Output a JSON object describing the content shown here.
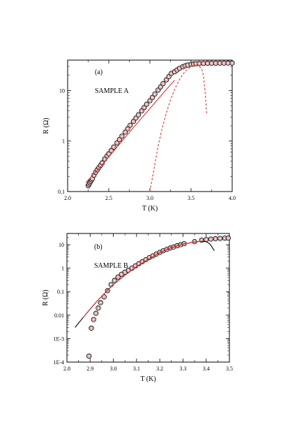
{
  "chart_data": [
    {
      "type": "scatter",
      "panel_label": "(a)",
      "sample_label": "SAMPLE A",
      "xlabel": "T (K)",
      "ylabel": "R (Ω)",
      "xlim": [
        2.0,
        4.0
      ],
      "ylim": [
        0.1,
        40
      ],
      "yscale": "log",
      "xticks": [
        2.0,
        2.5,
        3.0,
        3.5,
        4.0
      ],
      "xtick_labels": [
        "2.0",
        "2.5",
        "3.0",
        "3.5",
        "4.0"
      ],
      "yticks": [
        0.1,
        1,
        10
      ],
      "ytick_labels": [
        "0.1",
        "1",
        "10"
      ],
      "grid": false,
      "series": [
        {
          "style": "open-circle",
          "color": "#000000",
          "inner_color": "#e03030",
          "x": [
            2.25,
            2.26,
            2.27,
            2.28,
            2.29,
            2.3,
            2.32,
            2.34,
            2.36,
            2.38,
            2.4,
            2.42,
            2.45,
            2.48,
            2.5,
            2.53,
            2.56,
            2.6,
            2.63,
            2.66,
            2.7,
            2.73,
            2.76,
            2.8,
            2.83,
            2.86,
            2.9,
            2.93,
            2.96,
            3.0,
            3.03,
            3.06,
            3.1,
            3.13,
            3.16,
            3.2,
            3.23,
            3.26,
            3.3,
            3.33,
            3.36,
            3.4,
            3.43,
            3.46,
            3.5,
            3.53,
            3.56,
            3.6,
            3.65,
            3.7,
            3.75,
            3.8,
            3.85,
            3.9,
            3.95,
            4.0
          ],
          "y": [
            0.13,
            0.14,
            0.15,
            0.16,
            0.17,
            0.18,
            0.21,
            0.24,
            0.27,
            0.3,
            0.33,
            0.37,
            0.44,
            0.51,
            0.56,
            0.65,
            0.76,
            0.92,
            1.07,
            1.25,
            1.5,
            1.75,
            2.05,
            2.45,
            2.85,
            3.3,
            3.95,
            4.6,
            5.35,
            6.3,
            7.3,
            8.5,
            10.2,
            11.8,
            13.7,
            16.3,
            18.9,
            21.8,
            23.5,
            25.5,
            27.5,
            29.5,
            31.0,
            32.0,
            33.0,
            33.5,
            34.0,
            34.3,
            34.5,
            34.7,
            34.8,
            34.8,
            34.9,
            34.9,
            35.0,
            35.0
          ]
        },
        {
          "style": "solid-line",
          "color": "#e03030",
          "x": [
            2.22,
            2.4,
            2.6,
            2.8,
            3.0,
            3.2,
            3.3
          ],
          "y": [
            0.15,
            0.31,
            0.76,
            1.85,
            4.4,
            10.5,
            16.0
          ]
        },
        {
          "style": "dashed-line",
          "color": "#e03030",
          "x": [
            3.0,
            3.05,
            3.1,
            3.15,
            3.2,
            3.25,
            3.3,
            3.35,
            3.4,
            3.45,
            3.5,
            3.55,
            3.6,
            3.63,
            3.65,
            3.67,
            3.69
          ],
          "y": [
            0.1,
            0.28,
            0.8,
            1.8,
            3.6,
            6.5,
            10.5,
            15.5,
            21.0,
            26.0,
            29.5,
            31.0,
            30.0,
            27.0,
            20.0,
            10.0,
            3.5
          ]
        }
      ]
    },
    {
      "type": "scatter",
      "panel_label": "(b)",
      "sample_label": "SAMPLE B",
      "xlabel": "T (K)",
      "ylabel": "R (Ω)",
      "xlim": [
        2.8,
        3.5
      ],
      "ylim": [
        0.0001,
        30
      ],
      "yscale": "log",
      "xticks": [
        2.8,
        2.9,
        3.0,
        3.1,
        3.2,
        3.3,
        3.4,
        3.5
      ],
      "xtick_labels": [
        "2.8",
        "2.9",
        "3.0",
        "3.1",
        "3.2",
        "3.3",
        "3.4",
        "3.5"
      ],
      "yticks": [
        0.0001,
        0.001,
        0.01,
        0.1,
        1,
        10
      ],
      "ytick_labels": [
        "1E-4",
        "1E-3",
        "0.01",
        "0.1",
        "1",
        "10"
      ],
      "grid": false,
      "series": [
        {
          "style": "open-circle",
          "color": "#000000",
          "inner_color": "#e03030",
          "x": [
            2.895,
            2.905,
            2.915,
            2.925,
            2.935,
            2.945,
            2.96,
            2.975,
            2.99,
            3.005,
            3.02,
            3.035,
            3.05,
            3.065,
            3.08,
            3.095,
            3.11,
            3.125,
            3.14,
            3.155,
            3.17,
            3.185,
            3.2,
            3.215,
            3.23,
            3.245,
            3.26,
            3.275,
            3.29,
            3.305,
            3.35,
            3.38,
            3.4,
            3.42,
            3.44,
            3.46,
            3.48,
            3.495
          ],
          "y": [
            0.00018,
            0.0028,
            0.0065,
            0.012,
            0.02,
            0.034,
            0.06,
            0.11,
            0.2,
            0.3,
            0.42,
            0.55,
            0.68,
            0.82,
            1.0,
            1.25,
            1.55,
            1.9,
            2.3,
            2.8,
            3.35,
            4.0,
            4.7,
            5.5,
            6.3,
            7.2,
            8.0,
            9.0,
            10.0,
            11.0,
            13.5,
            15.5,
            16.5,
            17.3,
            18.0,
            18.5,
            19.0,
            19.2
          ]
        },
        {
          "style": "solid-line",
          "color": "#000000",
          "x": [
            2.835,
            2.87,
            2.9,
            2.93,
            2.96,
            3.0,
            3.05,
            3.1,
            3.15,
            3.2,
            3.25,
            3.3,
            3.35,
            3.38,
            3.4,
            3.415,
            3.425,
            3.435
          ],
          "y": [
            0.003,
            0.008,
            0.018,
            0.04,
            0.08,
            0.2,
            0.5,
            1.15,
            2.4,
            4.6,
            7.5,
            10.5,
            13.0,
            14.0,
            13.5,
            11.0,
            8.0,
            5.5
          ]
        },
        {
          "style": "solid-line",
          "color": "#e03030",
          "x": [
            2.87,
            2.9,
            2.93,
            2.96,
            3.0,
            3.05,
            3.1,
            3.15,
            3.2,
            3.25,
            3.3,
            3.35,
            3.38
          ],
          "y": [
            0.008,
            0.018,
            0.04,
            0.08,
            0.2,
            0.5,
            1.15,
            2.4,
            4.6,
            7.5,
            10.5,
            13.0,
            14.0
          ]
        }
      ]
    }
  ]
}
